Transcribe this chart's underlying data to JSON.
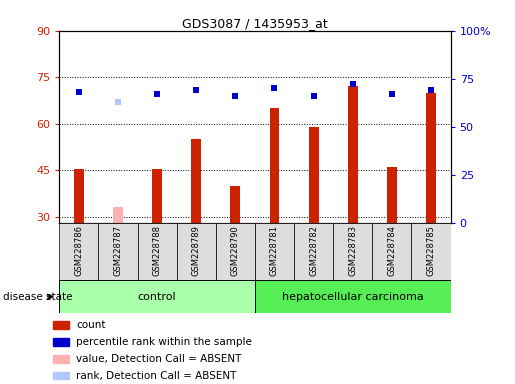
{
  "title": "GDS3087 / 1435953_at",
  "samples": [
    "GSM228786",
    "GSM228787",
    "GSM228788",
    "GSM228789",
    "GSM228790",
    "GSM228781",
    "GSM228782",
    "GSM228783",
    "GSM228784",
    "GSM228785"
  ],
  "count_values": [
    45.5,
    null,
    45.5,
    55,
    40,
    65,
    59,
    72,
    46,
    70
  ],
  "count_absent": [
    null,
    33,
    null,
    null,
    null,
    null,
    null,
    null,
    null,
    null
  ],
  "rank_values": [
    68,
    null,
    67,
    69,
    66,
    70,
    66,
    72,
    67,
    69
  ],
  "rank_absent": [
    null,
    63,
    null,
    null,
    null,
    null,
    null,
    null,
    null,
    null
  ],
  "ylim_left": [
    28,
    90
  ],
  "ylim_right": [
    0,
    100
  ],
  "yticks_left": [
    30,
    45,
    60,
    75,
    90
  ],
  "yticks_right": [
    0,
    25,
    50,
    75,
    100
  ],
  "ytick_labels_right": [
    "0",
    "25",
    "50",
    "75",
    "100%"
  ],
  "bar_color": "#CC2200",
  "bar_absent_color": "#FFB0B0",
  "rank_color": "#0000CC",
  "rank_absent_color": "#B0C8FF",
  "control_color": "#AAFFAA",
  "cancer_color": "#55EE55",
  "label_bg_color": "#DDDDDD",
  "tick_color_left": "#CC2200",
  "tick_color_right": "#0000CC",
  "bar_width": 0.25,
  "rank_marker_size": 5,
  "legend_items": [
    "count",
    "percentile rank within the sample",
    "value, Detection Call = ABSENT",
    "rank, Detection Call = ABSENT"
  ],
  "legend_colors": [
    "#CC2200",
    "#0000CC",
    "#FFB0B0",
    "#B0C8FF"
  ],
  "disease_state_label": "disease state",
  "control_label": "control",
  "cancer_label": "hepatocellular carcinoma",
  "n_control": 5,
  "n_cancer": 5
}
